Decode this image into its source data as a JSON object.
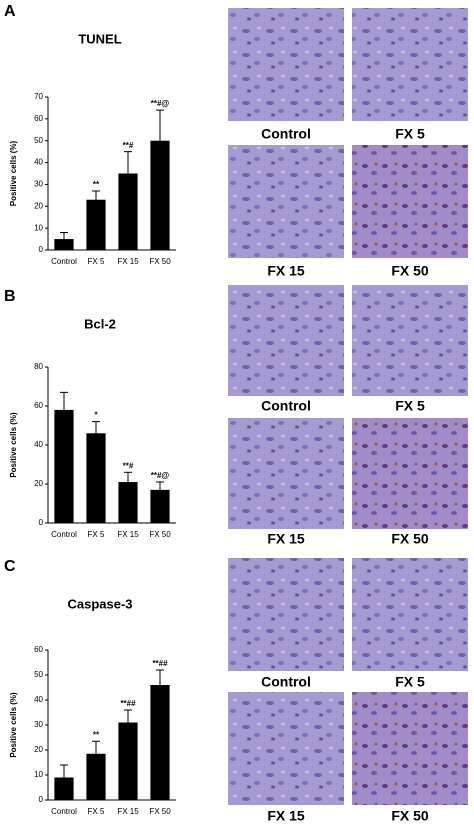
{
  "chart_data": [
    {
      "type": "bar",
      "panel_label": "A",
      "title": "TUNEL",
      "y_label": "Positive cells (%)",
      "categories": [
        "Control",
        "FX 5",
        "FX 15",
        "FX 50"
      ],
      "values": [
        5,
        23,
        35,
        50
      ],
      "errors": [
        3,
        4,
        10,
        14
      ],
      "annotations": [
        null,
        "**",
        "**#",
        "**#@"
      ],
      "color": "#000000",
      "ylim": [
        0,
        70
      ],
      "yticks": [
        0,
        10,
        20,
        30,
        40,
        50,
        60,
        70
      ],
      "image_captions": [
        "Control",
        "FX 5",
        "FX 15",
        "FX 50"
      ]
    },
    {
      "type": "bar",
      "panel_label": "B",
      "title": "Bcl-2",
      "y_label": "Positive cells (%)",
      "categories": [
        "Control",
        "FX 5",
        "FX 15",
        "FX 50"
      ],
      "values": [
        58,
        46,
        21,
        17
      ],
      "errors": [
        9,
        6,
        5,
        4
      ],
      "annotations": [
        null,
        "*",
        "**#",
        "**#@"
      ],
      "color": "#000000",
      "ylim": [
        0,
        80
      ],
      "yticks": [
        0,
        20,
        40,
        60,
        80
      ],
      "image_captions": [
        "Control",
        "FX 5",
        "FX 15",
        "FX 50"
      ]
    },
    {
      "type": "bar",
      "panel_label": "C",
      "title": "Caspase-3",
      "y_label": "Positive cells (%)",
      "categories": [
        "Control",
        "FX 5",
        "FX 15",
        "FX 50"
      ],
      "values": [
        9,
        18.5,
        31,
        46
      ],
      "errors": [
        5,
        5,
        5,
        6
      ],
      "annotations": [
        null,
        "**",
        "**##",
        "**##"
      ],
      "color": "#000000",
      "ylim": [
        0,
        60
      ],
      "yticks": [
        0,
        10,
        20,
        30,
        40,
        50,
        60
      ],
      "image_captions": [
        "Control",
        "FX 5",
        "FX 15",
        "FX 50"
      ]
    }
  ]
}
